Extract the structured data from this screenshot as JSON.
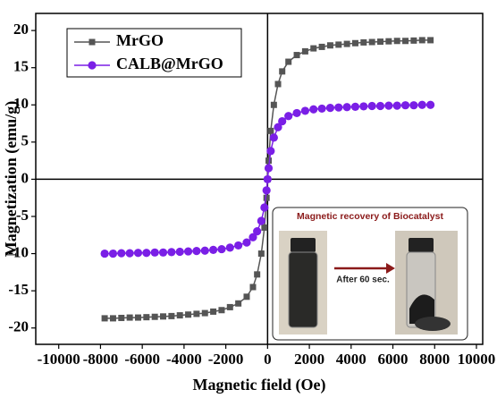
{
  "chart_data": {
    "type": "line",
    "x_label": "Magnetic field (Oe)",
    "y_label": "Magnetization (emu/g)",
    "x": [
      -7800,
      -7400,
      -7000,
      -6600,
      -6200,
      -5800,
      -5400,
      -5000,
      -4600,
      -4200,
      -3800,
      -3400,
      -3000,
      -2600,
      -2200,
      -1800,
      -1400,
      -1000,
      -700,
      -500,
      -300,
      -150,
      -50,
      0,
      50,
      150,
      300,
      500,
      700,
      1000,
      1400,
      1800,
      2200,
      2600,
      3000,
      3400,
      3800,
      4200,
      4600,
      5000,
      5400,
      5800,
      6200,
      6600,
      7000,
      7400,
      7800
    ],
    "series": [
      {
        "name": "MrGO",
        "color": "#555555",
        "marker": "square",
        "values": [
          -18.7,
          -18.7,
          -18.65,
          -18.6,
          -18.6,
          -18.55,
          -18.5,
          -18.45,
          -18.4,
          -18.3,
          -18.2,
          -18.1,
          -18.0,
          -17.8,
          -17.6,
          -17.2,
          -16.7,
          -15.8,
          -14.5,
          -12.8,
          -10,
          -6.5,
          -2.5,
          0,
          2.5,
          6.5,
          10,
          12.8,
          14.5,
          15.8,
          16.7,
          17.2,
          17.6,
          17.8,
          18.0,
          18.1,
          18.2,
          18.3,
          18.4,
          18.45,
          18.5,
          18.55,
          18.6,
          18.6,
          18.65,
          18.7,
          18.7
        ]
      },
      {
        "name": "CALB@MrGO",
        "color": "#7a1fe6",
        "marker": "circle",
        "values": [
          -10,
          -10,
          -9.95,
          -9.95,
          -9.9,
          -9.9,
          -9.85,
          -9.85,
          -9.8,
          -9.75,
          -9.7,
          -9.65,
          -9.6,
          -9.5,
          -9.4,
          -9.2,
          -8.9,
          -8.5,
          -7.8,
          -7,
          -5.6,
          -3.8,
          -1.5,
          0,
          1.5,
          3.8,
          5.6,
          7,
          7.8,
          8.5,
          8.9,
          9.2,
          9.4,
          9.5,
          9.6,
          9.65,
          9.7,
          9.75,
          9.8,
          9.85,
          9.85,
          9.9,
          9.9,
          9.95,
          9.95,
          10,
          10
        ]
      }
    ],
    "xlim": [
      -11100,
      10300
    ],
    "ylim": [
      -22.2,
      22.3
    ],
    "xticks": [
      -10000,
      -8000,
      -6000,
      -4000,
      -2000,
      0,
      2000,
      4000,
      6000,
      8000,
      10000
    ],
    "yticks": [
      -20,
      -15,
      -10,
      -5,
      0,
      5,
      10,
      15,
      20
    ],
    "legend": "upper left",
    "inset": {
      "title": "Magnetic recovery of Biocatalyst",
      "arrow_label": "After 60 sec."
    }
  }
}
